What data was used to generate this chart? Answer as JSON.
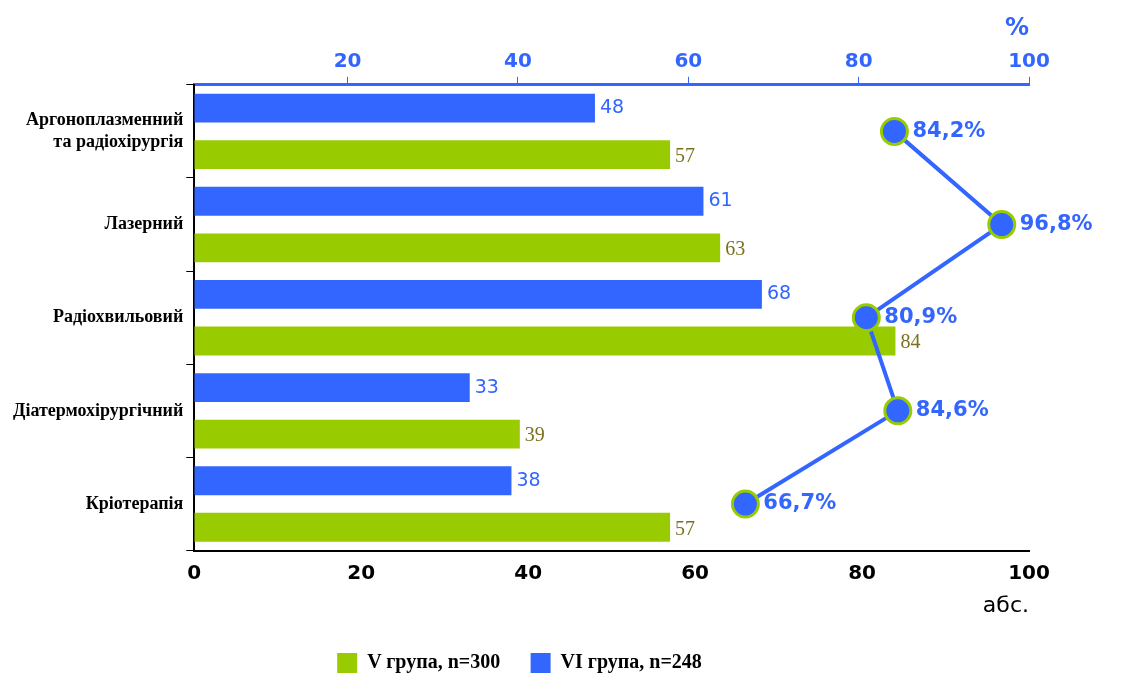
{
  "chart_data": {
    "type": "bar",
    "orientation": "horizontal",
    "categories": [
      "Аргоноплазменний та радіохірургія",
      "Лазерний",
      "Радіохвильовий",
      "Діатермохірургічний",
      "Кріотерапія"
    ],
    "series": [
      {
        "name": "V група, n=300",
        "color": "#99cc00",
        "values": [
          57,
          63,
          84,
          39,
          57
        ],
        "value_labels": [
          "57",
          "63",
          "84",
          "39",
          "57"
        ]
      },
      {
        "name": "VI група, n=248",
        "color": "#3366ff",
        "values": [
          48,
          61,
          68,
          33,
          38
        ],
        "value_labels": [
          "48",
          "61",
          "68",
          "33",
          "38"
        ]
      },
      {
        "type": "line",
        "axis": "x2",
        "color": "#3366ff",
        "values": [
          84.2,
          96.8,
          80.9,
          84.6,
          66.7
        ],
        "value_labels": [
          "84,2%",
          "96,8%",
          "80,9%",
          "84,6%",
          "66,7%"
        ]
      }
    ],
    "xlim": [
      0,
      100
    ],
    "xticks": [
      0,
      20,
      40,
      60,
      80,
      100
    ],
    "xlabel": "абс.",
    "x2lim": [
      2,
      100
    ],
    "x2ticks": [
      20,
      40,
      60,
      80,
      100
    ],
    "x2label": "%",
    "grid": false,
    "legend": "bottom",
    "marker": "circle",
    "line_style": "solid"
  }
}
